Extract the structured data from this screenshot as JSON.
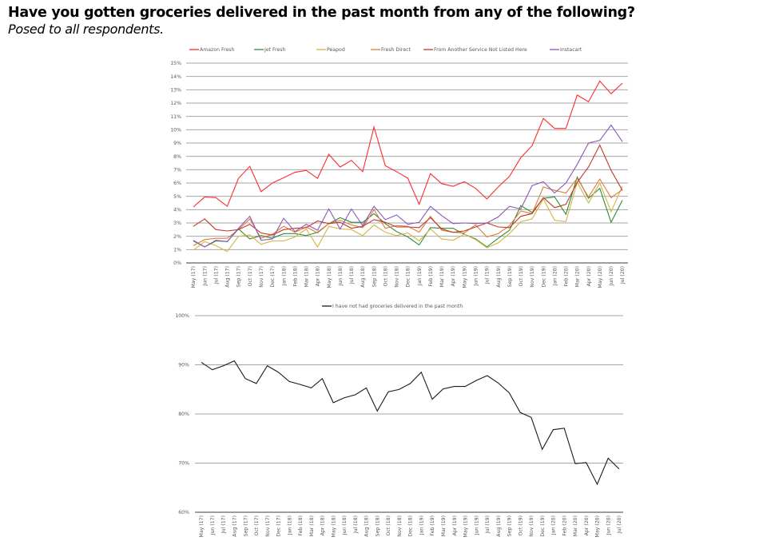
{
  "header": {
    "title": "Have you gotten groceries delivered in the past month from any of the following?",
    "subtitle": "Posed to all respondents."
  },
  "chart_data": [
    {
      "type": "line",
      "title": "",
      "xlabel": "",
      "ylabel": "",
      "ylim": [
        0,
        15
      ],
      "y_ticks": [
        "0%",
        "1%",
        "2%",
        "3%",
        "4%",
        "5%",
        "6%",
        "7%",
        "8%",
        "9%",
        "10%",
        "11%",
        "12%",
        "13%",
        "14%",
        "15%"
      ],
      "y_unit": "%",
      "grid": true,
      "legend_position": "top",
      "x": [
        "May (17)",
        "Jun (17)",
        "Jul (17)",
        "Aug (17)",
        "Sep (17)",
        "Oct (17)",
        "Nov (17)",
        "Dec (17)",
        "Jan (18)",
        "Feb (18)",
        "Mar (18)",
        "Apr (18)",
        "May (18)",
        "Jun (18)",
        "Jul (18)",
        "Aug (18)",
        "Sep (18)",
        "Oct (18)",
        "Nov (18)",
        "Dec (18)",
        "Jan (19)",
        "Feb (19)",
        "Mar (19)",
        "Apr (19)",
        "May (19)",
        "Jun (19)",
        "Jul (19)",
        "Aug (19)",
        "Sep (19)",
        "Oct (19)",
        "Nov (19)",
        "Dec (19)",
        "Jan (20)",
        "Feb (20)",
        "Mar (20)",
        "Apr (20)",
        "May (20)",
        "Jun (20)",
        "Jul (20)"
      ],
      "series": [
        {
          "name": "Amazon Fresh",
          "color": "#ff2b2b",
          "values": [
            4.2,
            4.95,
            4.9,
            4.25,
            6.35,
            7.25,
            5.35,
            6.0,
            6.4,
            6.8,
            6.95,
            6.35,
            8.15,
            7.2,
            7.7,
            6.85,
            10.2,
            7.3,
            6.85,
            6.35,
            4.4,
            6.7,
            5.95,
            5.75,
            6.1,
            5.6,
            4.8,
            5.7,
            6.5,
            7.9,
            8.8,
            10.85,
            10.1,
            10.1,
            12.6,
            12.1,
            13.65,
            12.7,
            13.5
          ]
        },
        {
          "name": "Jet Fresh",
          "color": "#2e8b3a",
          "values": [
            1.65,
            1.2,
            1.65,
            1.6,
            2.55,
            1.8,
            2.05,
            1.85,
            2.2,
            2.2,
            2.05,
            2.3,
            2.95,
            3.4,
            3.05,
            3.05,
            3.7,
            2.95,
            2.35,
            1.95,
            1.35,
            2.65,
            2.6,
            2.6,
            2.15,
            1.8,
            1.2,
            1.85,
            2.45,
            4.3,
            3.8,
            4.85,
            4.95,
            3.65,
            6.45,
            4.85,
            5.6,
            3.05,
            4.7
          ]
        },
        {
          "name": "Peapod",
          "color": "#d4b43c",
          "values": [
            0.95,
            1.6,
            1.3,
            0.85,
            2.0,
            2.1,
            1.4,
            1.65,
            1.65,
            1.95,
            2.55,
            1.2,
            2.75,
            2.55,
            2.5,
            2.05,
            2.85,
            2.3,
            2.05,
            2.25,
            1.65,
            2.55,
            1.8,
            1.7,
            2.15,
            1.75,
            1.15,
            1.5,
            2.2,
            3.1,
            3.3,
            4.8,
            3.2,
            3.1,
            6.05,
            4.5,
            6.0,
            3.85,
            5.75
          ]
        },
        {
          "name": "Fresh Direct",
          "color": "#e07b39",
          "values": [
            1.3,
            1.75,
            1.85,
            1.85,
            2.5,
            3.3,
            1.85,
            2.15,
            2.75,
            2.3,
            2.7,
            2.25,
            2.95,
            3.2,
            2.85,
            2.65,
            4.0,
            2.6,
            2.8,
            2.75,
            2.3,
            3.5,
            2.45,
            2.3,
            2.25,
            2.85,
            1.95,
            2.2,
            2.8,
            3.9,
            3.7,
            5.7,
            5.45,
            5.25,
            6.35,
            4.95,
            6.3,
            4.9,
            5.5
          ]
        },
        {
          "name": "From Another Service Not Listed Here",
          "color": "#c0392b",
          "values": [
            2.75,
            3.3,
            2.5,
            2.4,
            2.5,
            2.9,
            2.25,
            2.1,
            2.5,
            2.6,
            2.65,
            3.15,
            2.95,
            3.05,
            2.6,
            2.75,
            3.25,
            3.05,
            2.7,
            2.7,
            2.65,
            3.4,
            2.55,
            2.3,
            2.4,
            2.7,
            3.0,
            2.7,
            2.65,
            3.5,
            3.7,
            4.9,
            4.15,
            4.4,
            6.05,
            7.2,
            8.85,
            6.95,
            5.45
          ]
        },
        {
          "name": "Instacart",
          "color": "#8a56b8",
          "values": [
            1.7,
            1.2,
            1.7,
            1.6,
            2.6,
            3.5,
            1.7,
            1.8,
            3.35,
            2.35,
            2.9,
            2.45,
            4.05,
            2.55,
            4.05,
            2.8,
            4.25,
            3.25,
            3.6,
            2.9,
            3.05,
            4.25,
            3.55,
            2.95,
            3.0,
            2.95,
            3.0,
            3.45,
            4.25,
            4.05,
            5.8,
            6.1,
            5.25,
            6.0,
            7.4,
            9.0,
            9.2,
            10.35,
            9.1
          ]
        }
      ]
    },
    {
      "type": "line",
      "title": "",
      "xlabel": "",
      "ylabel": "",
      "ylim": [
        60,
        100
      ],
      "y_ticks": [
        "60%",
        "70%",
        "80%",
        "90%",
        "100%"
      ],
      "y_unit": "%",
      "grid": true,
      "legend_position": "top",
      "x": [
        "May (17)",
        "Jun (17)",
        "Jul (17)",
        "Aug (17)",
        "Sep (17)",
        "Oct (17)",
        "Nov (17)",
        "Dec (17)",
        "Jan (18)",
        "Feb (18)",
        "Mar (18)",
        "Apr (18)",
        "May (18)",
        "Jun (18)",
        "Jul (18)",
        "Aug (18)",
        "Sep (18)",
        "Oct (18)",
        "Nov (18)",
        "Dec (18)",
        "Jan (19)",
        "Feb (19)",
        "Mar (19)",
        "Apr (19)",
        "May (19)",
        "Jun (19)",
        "Jul (19)",
        "Aug (19)",
        "Sep (19)",
        "Oct (19)",
        "Nov (19)",
        "Dec (19)",
        "Jan (20)",
        "Feb (20)",
        "Mar (20)",
        "Apr (20)",
        "May (20)",
        "Jun (20)",
        "Jul (20)"
      ],
      "series": [
        {
          "name": "I have not had groceries delivered in the past month",
          "color": "#1a1a1a",
          "values": [
            90.5,
            89.0,
            89.8,
            90.8,
            87.2,
            86.2,
            89.8,
            88.5,
            86.6,
            86.0,
            85.3,
            87.2,
            82.3,
            83.3,
            83.9,
            85.3,
            80.6,
            84.5,
            85.0,
            86.2,
            88.5,
            83.0,
            85.1,
            85.6,
            85.6,
            86.8,
            87.8,
            86.3,
            84.3,
            80.3,
            79.3,
            72.8,
            76.8,
            77.1,
            69.9,
            70.1,
            65.7,
            71.0,
            68.8
          ]
        }
      ]
    }
  ]
}
